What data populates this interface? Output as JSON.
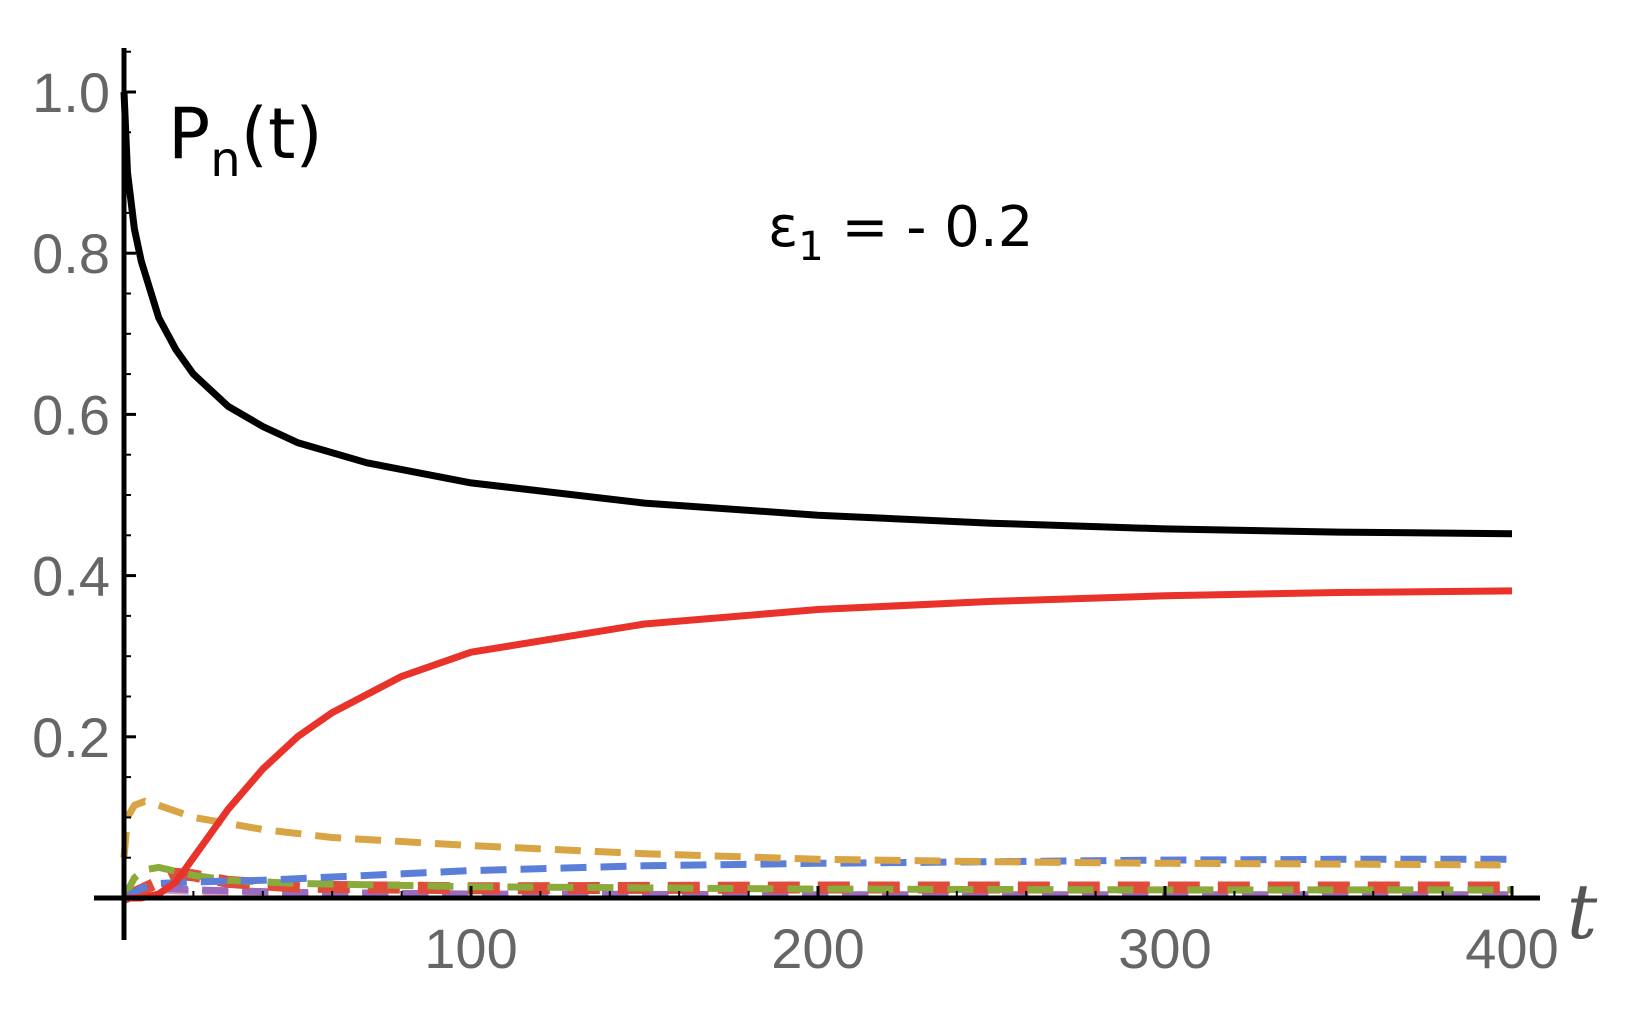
{
  "chart_data": {
    "type": "line",
    "title": "",
    "xlabel": "t",
    "ylabel": "P",
    "ylabel_sub": "n",
    "ylabel_suffix": "(t)",
    "annotation": {
      "main": "ε",
      "sub": "1",
      "rest": " = - 0.2"
    },
    "xlim": [
      0,
      400
    ],
    "ylim": [
      0,
      1.05
    ],
    "grid": false,
    "legend": "none",
    "x_ticks": [
      100,
      200,
      300,
      400
    ],
    "x_tick_labels": [
      "100",
      "200",
      "300",
      "400"
    ],
    "y_ticks": [
      0.2,
      0.4,
      0.6,
      0.8,
      1.0
    ],
    "y_tick_labels": [
      "0.2",
      "0.4",
      "0.6",
      "0.8",
      "1.0"
    ],
    "series": [
      {
        "color": "#000000",
        "style": "solid",
        "x": [
          0,
          1,
          3,
          5,
          10,
          15,
          20,
          30,
          40,
          50,
          70,
          100,
          150,
          200,
          250,
          300,
          350,
          400
        ],
        "y": [
          1.0,
          0.9,
          0.83,
          0.79,
          0.72,
          0.68,
          0.65,
          0.61,
          0.585,
          0.565,
          0.54,
          0.515,
          0.49,
          0.475,
          0.465,
          0.458,
          0.454,
          0.452
        ]
      },
      {
        "color": "#e8322a",
        "style": "solid",
        "x": [
          0,
          5,
          10,
          15,
          20,
          25,
          30,
          40,
          50,
          60,
          80,
          100,
          150,
          200,
          250,
          300,
          350,
          400
        ],
        "y": [
          0.0,
          0.0,
          0.005,
          0.02,
          0.05,
          0.08,
          0.11,
          0.16,
          0.2,
          0.23,
          0.275,
          0.305,
          0.34,
          0.358,
          0.368,
          0.375,
          0.379,
          0.381
        ]
      },
      {
        "color": "#d9a444",
        "style": "dashed",
        "x": [
          0,
          1,
          3,
          6,
          10,
          20,
          40,
          60,
          100,
          150,
          200,
          250,
          300,
          350,
          400
        ],
        "y": [
          0.05,
          0.1,
          0.115,
          0.12,
          0.115,
          0.1,
          0.085,
          0.075,
          0.065,
          0.055,
          0.048,
          0.045,
          0.043,
          0.042,
          0.041
        ]
      },
      {
        "color": "#5b7fd8",
        "style": "dashed",
        "x": [
          0,
          5,
          10,
          20,
          40,
          60,
          100,
          150,
          200,
          250,
          300,
          350,
          400
        ],
        "y": [
          0.0,
          0.012,
          0.018,
          0.02,
          0.022,
          0.026,
          0.034,
          0.04,
          0.043,
          0.045,
          0.047,
          0.048,
          0.048
        ]
      },
      {
        "color": "#8aaa3a",
        "style": "dashed",
        "x": [
          0,
          3,
          6,
          10,
          15,
          20,
          30,
          50,
          100,
          200,
          300,
          400
        ],
        "y": [
          0.0,
          0.025,
          0.035,
          0.038,
          0.033,
          0.028,
          0.022,
          0.018,
          0.014,
          0.011,
          0.01,
          0.01
        ]
      },
      {
        "color": "#e04b3a",
        "style": "dashed-thick",
        "x": [
          0,
          5,
          10,
          15,
          20,
          30,
          50,
          100,
          200,
          300,
          400
        ],
        "y": [
          0.0,
          0.01,
          0.02,
          0.03,
          0.028,
          0.02,
          0.014,
          0.012,
          0.013,
          0.013,
          0.013
        ]
      },
      {
        "color": "#9a6cc0",
        "style": "dashed",
        "x": [
          0,
          5,
          10,
          20,
          50,
          100,
          200,
          300,
          400
        ],
        "y": [
          0.0,
          0.01,
          0.012,
          0.01,
          0.007,
          0.005,
          0.004,
          0.004,
          0.004
        ]
      },
      {
        "color": "#e0a0c0",
        "style": "dashed",
        "x": [
          0,
          5,
          10,
          20,
          50,
          100,
          200,
          300,
          400
        ],
        "y": [
          0.0,
          0.008,
          0.01,
          0.008,
          0.005,
          0.003,
          0.003,
          0.003,
          0.003
        ]
      }
    ]
  }
}
